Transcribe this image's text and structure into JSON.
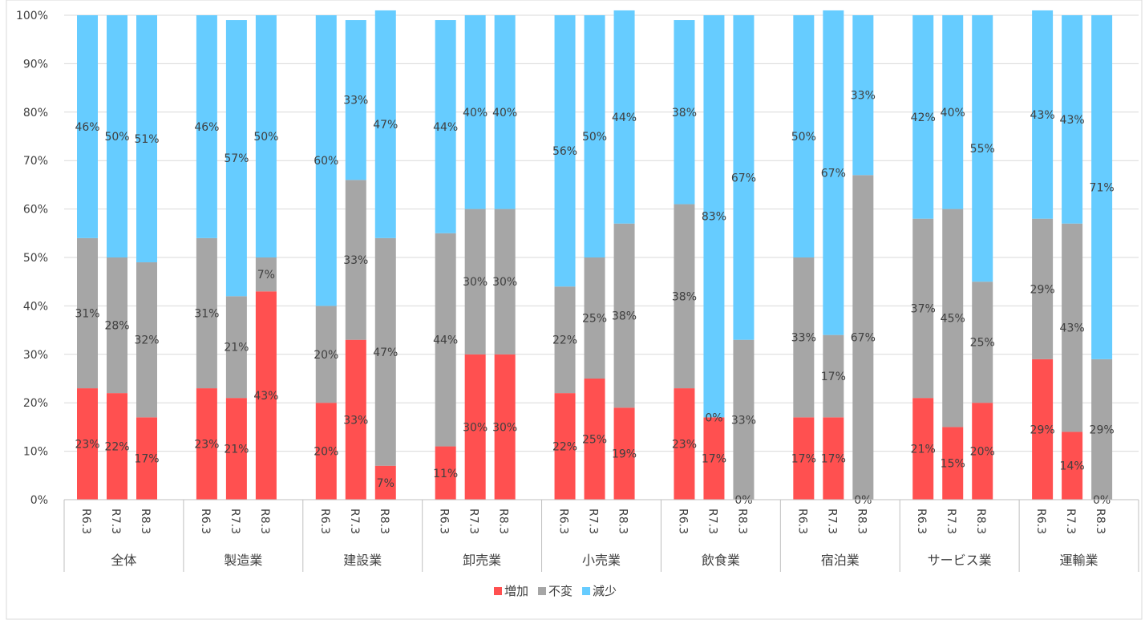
{
  "chart_data": {
    "type": "bar",
    "stacked": true,
    "title": "",
    "xlabel": "",
    "ylabel": "",
    "ylim": [
      0,
      100
    ],
    "y_ticks": [
      "0%",
      "10%",
      "20%",
      "30%",
      "40%",
      "50%",
      "60%",
      "70%",
      "80%",
      "90%",
      "100%"
    ],
    "grid": true,
    "legend": "bottom",
    "groups": [
      {
        "name": "全体",
        "periods": [
          "R6.3",
          "R7.3",
          "R8.3"
        ],
        "inc": [
          23,
          22,
          17
        ],
        "same": [
          31,
          28,
          32
        ],
        "dec": [
          46,
          50,
          51
        ]
      },
      {
        "name": "製造業",
        "periods": [
          "R6.3",
          "R7.3",
          "R8.3"
        ],
        "inc": [
          23,
          21,
          43
        ],
        "same": [
          31,
          21,
          7
        ],
        "dec": [
          46,
          57,
          50
        ]
      },
      {
        "name": "建設業",
        "periods": [
          "R6.3",
          "R7.3",
          "R8.3"
        ],
        "inc": [
          20,
          33,
          7
        ],
        "same": [
          20,
          33,
          47
        ],
        "dec": [
          60,
          33,
          47
        ]
      },
      {
        "name": "卸売業",
        "periods": [
          "R6.3",
          "R7.3",
          "R8.3"
        ],
        "inc": [
          11,
          30,
          30
        ],
        "same": [
          44,
          30,
          30
        ],
        "dec": [
          44,
          40,
          40
        ]
      },
      {
        "name": "小売業",
        "periods": [
          "R6.3",
          "R7.3",
          "R8.3"
        ],
        "inc": [
          22,
          25,
          19
        ],
        "same": [
          22,
          25,
          38
        ],
        "dec": [
          56,
          50,
          44
        ]
      },
      {
        "name": "飲食業",
        "periods": [
          "R6.3",
          "R7.3",
          "R8.3"
        ],
        "inc": [
          23,
          17,
          0
        ],
        "same": [
          38,
          0,
          33
        ],
        "dec": [
          38,
          83,
          67
        ]
      },
      {
        "name": "宿泊業",
        "periods": [
          "R6.3",
          "R7.3",
          "R8.3"
        ],
        "inc": [
          17,
          17,
          0
        ],
        "same": [
          33,
          17,
          67
        ],
        "dec": [
          50,
          67,
          33
        ]
      },
      {
        "name": "サービス業",
        "periods": [
          "R6.3",
          "R7.3",
          "R8.3"
        ],
        "inc": [
          21,
          15,
          20
        ],
        "same": [
          37,
          45,
          25
        ],
        "dec": [
          42,
          40,
          55
        ]
      },
      {
        "name": "運輸業",
        "periods": [
          "R6.3",
          "R7.3",
          "R8.3"
        ],
        "inc": [
          29,
          14,
          0
        ],
        "same": [
          29,
          43,
          29
        ],
        "dec": [
          43,
          43,
          71
        ]
      }
    ],
    "series": [
      {
        "key": "inc",
        "name": "増加",
        "color": "#ff5050"
      },
      {
        "key": "same",
        "name": "不変",
        "color": "#a6a6a6"
      },
      {
        "key": "dec",
        "name": "減少",
        "color": "#66ccff"
      }
    ]
  }
}
